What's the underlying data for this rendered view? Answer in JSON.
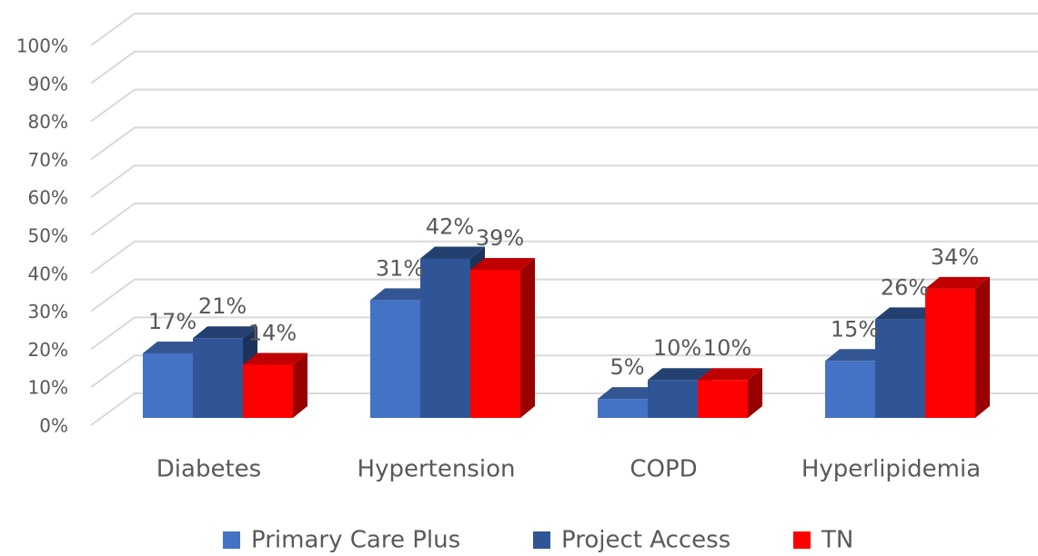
{
  "chart_data": {
    "type": "bar3d",
    "categories": [
      "Diabetes",
      "Hypertension",
      "COPD",
      "Hyperlipidemia"
    ],
    "series": [
      {
        "name": "Primary Care Plus",
        "color": "#4472c4",
        "values": [
          17,
          31,
          5,
          15
        ],
        "value_labels": [
          "17%",
          "31%",
          "5%",
          "15%"
        ]
      },
      {
        "name": "Project Access",
        "color": "#2f5597",
        "values": [
          21,
          42,
          10,
          26
        ],
        "value_labels": [
          "21%",
          "42%",
          "10%",
          "26%"
        ]
      },
      {
        "name": "TN",
        "color": "#ff0000",
        "values": [
          14,
          39,
          10,
          34
        ],
        "value_labels": [
          "14%",
          "39%",
          "10%",
          "34%"
        ]
      }
    ],
    "ylim": [
      0,
      100
    ],
    "yticks": [
      {
        "value": 0,
        "label": "0%"
      },
      {
        "value": 10,
        "label": "10%"
      },
      {
        "value": 20,
        "label": "20%"
      },
      {
        "value": 30,
        "label": "30%"
      },
      {
        "value": 40,
        "label": "40%"
      },
      {
        "value": 50,
        "label": "50%"
      },
      {
        "value": 60,
        "label": "60%"
      },
      {
        "value": 70,
        "label": "70%"
      },
      {
        "value": 80,
        "label": "80%"
      },
      {
        "value": 90,
        "label": "90%"
      },
      {
        "value": 100,
        "label": "100%"
      }
    ],
    "grid": true,
    "legend": "bottom"
  }
}
